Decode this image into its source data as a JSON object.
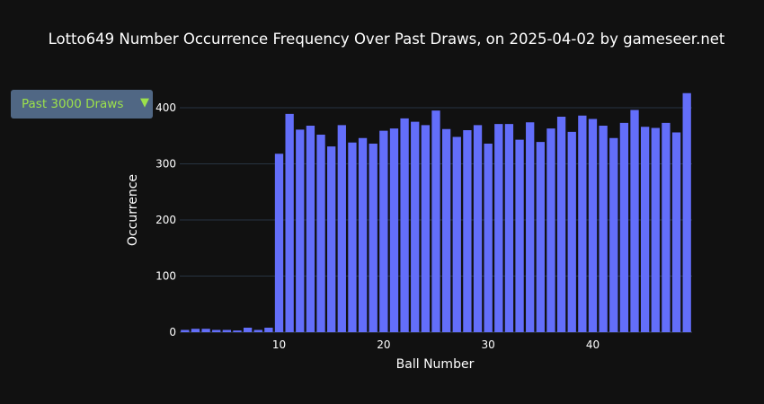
{
  "title": "Lotto649 Number Occurrence Frequency Over Past Draws, on 2025-04-02 by gameseer.net",
  "dropdown": {
    "selected": "Past 3000 Draws",
    "arrow_icon": "triangle-down-icon"
  },
  "colors": {
    "bar": "#636efa",
    "background": "#111111",
    "grid": "#283442",
    "dropdown_bg": "#506784",
    "dropdown_text": "#9ce14b"
  },
  "chart_data": {
    "type": "bar",
    "xlabel": "Ball Number",
    "ylabel": "Occurrence",
    "x": [
      1,
      2,
      3,
      4,
      5,
      6,
      7,
      8,
      9,
      10,
      11,
      12,
      13,
      14,
      15,
      16,
      17,
      18,
      19,
      20,
      21,
      22,
      23,
      24,
      25,
      26,
      27,
      28,
      29,
      30,
      31,
      32,
      33,
      34,
      35,
      36,
      37,
      38,
      39,
      40,
      41,
      42,
      43,
      44,
      45,
      46,
      47,
      48,
      49
    ],
    "values": [
      4,
      6,
      6,
      4,
      4,
      3,
      8,
      4,
      8,
      318,
      389,
      361,
      368,
      352,
      331,
      369,
      338,
      346,
      336,
      359,
      363,
      381,
      375,
      369,
      395,
      362,
      348,
      360,
      369,
      336,
      371,
      371,
      343,
      374,
      339,
      363,
      384,
      357,
      386,
      380,
      368,
      346,
      373,
      396,
      366,
      364,
      373,
      356,
      426
    ],
    "xticks": [
      10,
      20,
      30,
      40
    ],
    "yticks": [
      0,
      100,
      200,
      300,
      400
    ],
    "xlim": [
      0.5,
      49.5
    ],
    "ylim": [
      0,
      448
    ],
    "grid": true
  }
}
